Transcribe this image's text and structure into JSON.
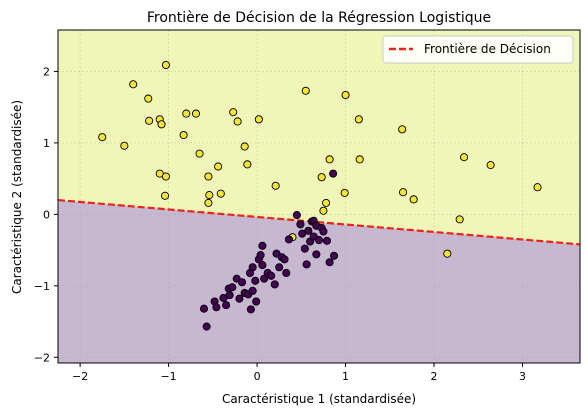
{
  "chart_data": {
    "type": "scatter",
    "title": "Frontière de Décision de la Régression Logistique",
    "xlabel": "Caractéristique 1 (standardisée)",
    "ylabel": "Caractéristique 2 (standardisée)",
    "xlim": [
      -2.25,
      3.65
    ],
    "ylim": [
      -2.08,
      2.58
    ],
    "xticks": [
      -2,
      -1,
      0,
      1,
      2,
      3
    ],
    "yticks": [
      -2,
      -1,
      0,
      1,
      2
    ],
    "grid": true,
    "legend_position": "top-right",
    "colors": {
      "upper_region": "#f0f5b8",
      "lower_region": "#c7b8d2",
      "boundary": "#e8241c",
      "class_1": "#f3e43a",
      "class_0": "#440154",
      "marker_edge": "#000000"
    },
    "boundary": {
      "name": "Frontière de Décision",
      "x": [
        -2.25,
        3.65
      ],
      "y": [
        0.2,
        -0.42
      ]
    },
    "series": [
      {
        "class": 1,
        "points": [
          [
            -1.75,
            1.08
          ],
          [
            -1.5,
            0.96
          ],
          [
            -1.4,
            1.82
          ],
          [
            -1.23,
            1.62
          ],
          [
            -1.22,
            1.31
          ],
          [
            -1.1,
            1.33
          ],
          [
            -1.08,
            1.26
          ],
          [
            -1.03,
            2.09
          ],
          [
            -1.1,
            0.57
          ],
          [
            -1.03,
            0.53
          ],
          [
            -1.04,
            0.26
          ],
          [
            -0.83,
            1.11
          ],
          [
            -0.8,
            1.41
          ],
          [
            -0.69,
            1.41
          ],
          [
            -0.65,
            0.85
          ],
          [
            -0.55,
            0.53
          ],
          [
            -0.54,
            0.27
          ],
          [
            -0.55,
            0.16
          ],
          [
            -0.44,
            0.67
          ],
          [
            -0.41,
            0.29
          ],
          [
            -0.27,
            1.43
          ],
          [
            -0.22,
            1.3
          ],
          [
            -0.14,
            0.95
          ],
          [
            -0.11,
            0.7
          ],
          [
            0.02,
            1.33
          ],
          [
            0.21,
            0.4
          ],
          [
            0.55,
            1.73
          ],
          [
            0.4,
            -0.32
          ],
          [
            0.73,
            0.52
          ],
          [
            0.75,
            0.05
          ],
          [
            0.78,
            0.16
          ],
          [
            0.82,
            0.77
          ],
          [
            0.99,
            0.3
          ],
          [
            1.0,
            1.67
          ],
          [
            1.15,
            1.33
          ],
          [
            1.16,
            0.77
          ],
          [
            1.64,
            1.19
          ],
          [
            1.65,
            0.31
          ],
          [
            1.77,
            0.21
          ],
          [
            2.15,
            -0.55
          ],
          [
            2.29,
            -0.07
          ],
          [
            2.34,
            0.8
          ],
          [
            2.64,
            0.69
          ],
          [
            3.17,
            0.38
          ]
        ]
      },
      {
        "class": 0,
        "points": [
          [
            -0.6,
            -1.32
          ],
          [
            -0.57,
            -1.57
          ],
          [
            -0.48,
            -1.22
          ],
          [
            -0.46,
            -1.3
          ],
          [
            -0.38,
            -1.17
          ],
          [
            -0.35,
            -1.27
          ],
          [
            -0.32,
            -1.04
          ],
          [
            -0.31,
            -1.13
          ],
          [
            -0.28,
            -1.02
          ],
          [
            -0.23,
            -0.9
          ],
          [
            -0.2,
            -1.18
          ],
          [
            -0.17,
            -0.95
          ],
          [
            -0.14,
            -1.1
          ],
          [
            -0.1,
            -1.12
          ],
          [
            -0.07,
            -1.33
          ],
          [
            -0.05,
            -1.07
          ],
          [
            -0.08,
            -0.82
          ],
          [
            -0.05,
            -0.74
          ],
          [
            -0.02,
            -0.93
          ],
          [
            -0.01,
            -1.22
          ],
          [
            0.02,
            -0.63
          ],
          [
            0.04,
            -0.57
          ],
          [
            0.06,
            -0.44
          ],
          [
            0.06,
            -0.71
          ],
          [
            0.08,
            -0.9
          ],
          [
            0.12,
            -0.82
          ],
          [
            0.16,
            -0.86
          ],
          [
            0.2,
            -0.98
          ],
          [
            0.22,
            -0.55
          ],
          [
            0.25,
            -0.74
          ],
          [
            0.28,
            -0.6
          ],
          [
            0.31,
            -0.63
          ],
          [
            0.33,
            -0.82
          ],
          [
            0.36,
            -0.35
          ],
          [
            0.45,
            -0.01
          ],
          [
            0.49,
            -0.14
          ],
          [
            0.51,
            -0.27
          ],
          [
            0.54,
            -0.48
          ],
          [
            0.56,
            -0.7
          ],
          [
            0.58,
            -0.23
          ],
          [
            0.6,
            -0.38
          ],
          [
            0.62,
            -0.1
          ],
          [
            0.64,
            -0.09
          ],
          [
            0.64,
            -0.31
          ],
          [
            0.67,
            -0.16
          ],
          [
            0.67,
            -0.56
          ],
          [
            0.7,
            -0.36
          ],
          [
            0.73,
            -0.19
          ],
          [
            0.75,
            -0.24
          ],
          [
            0.79,
            -0.37
          ],
          [
            0.82,
            -0.67
          ],
          [
            0.86,
            0.57
          ],
          [
            0.87,
            -0.58
          ]
        ]
      }
    ]
  }
}
